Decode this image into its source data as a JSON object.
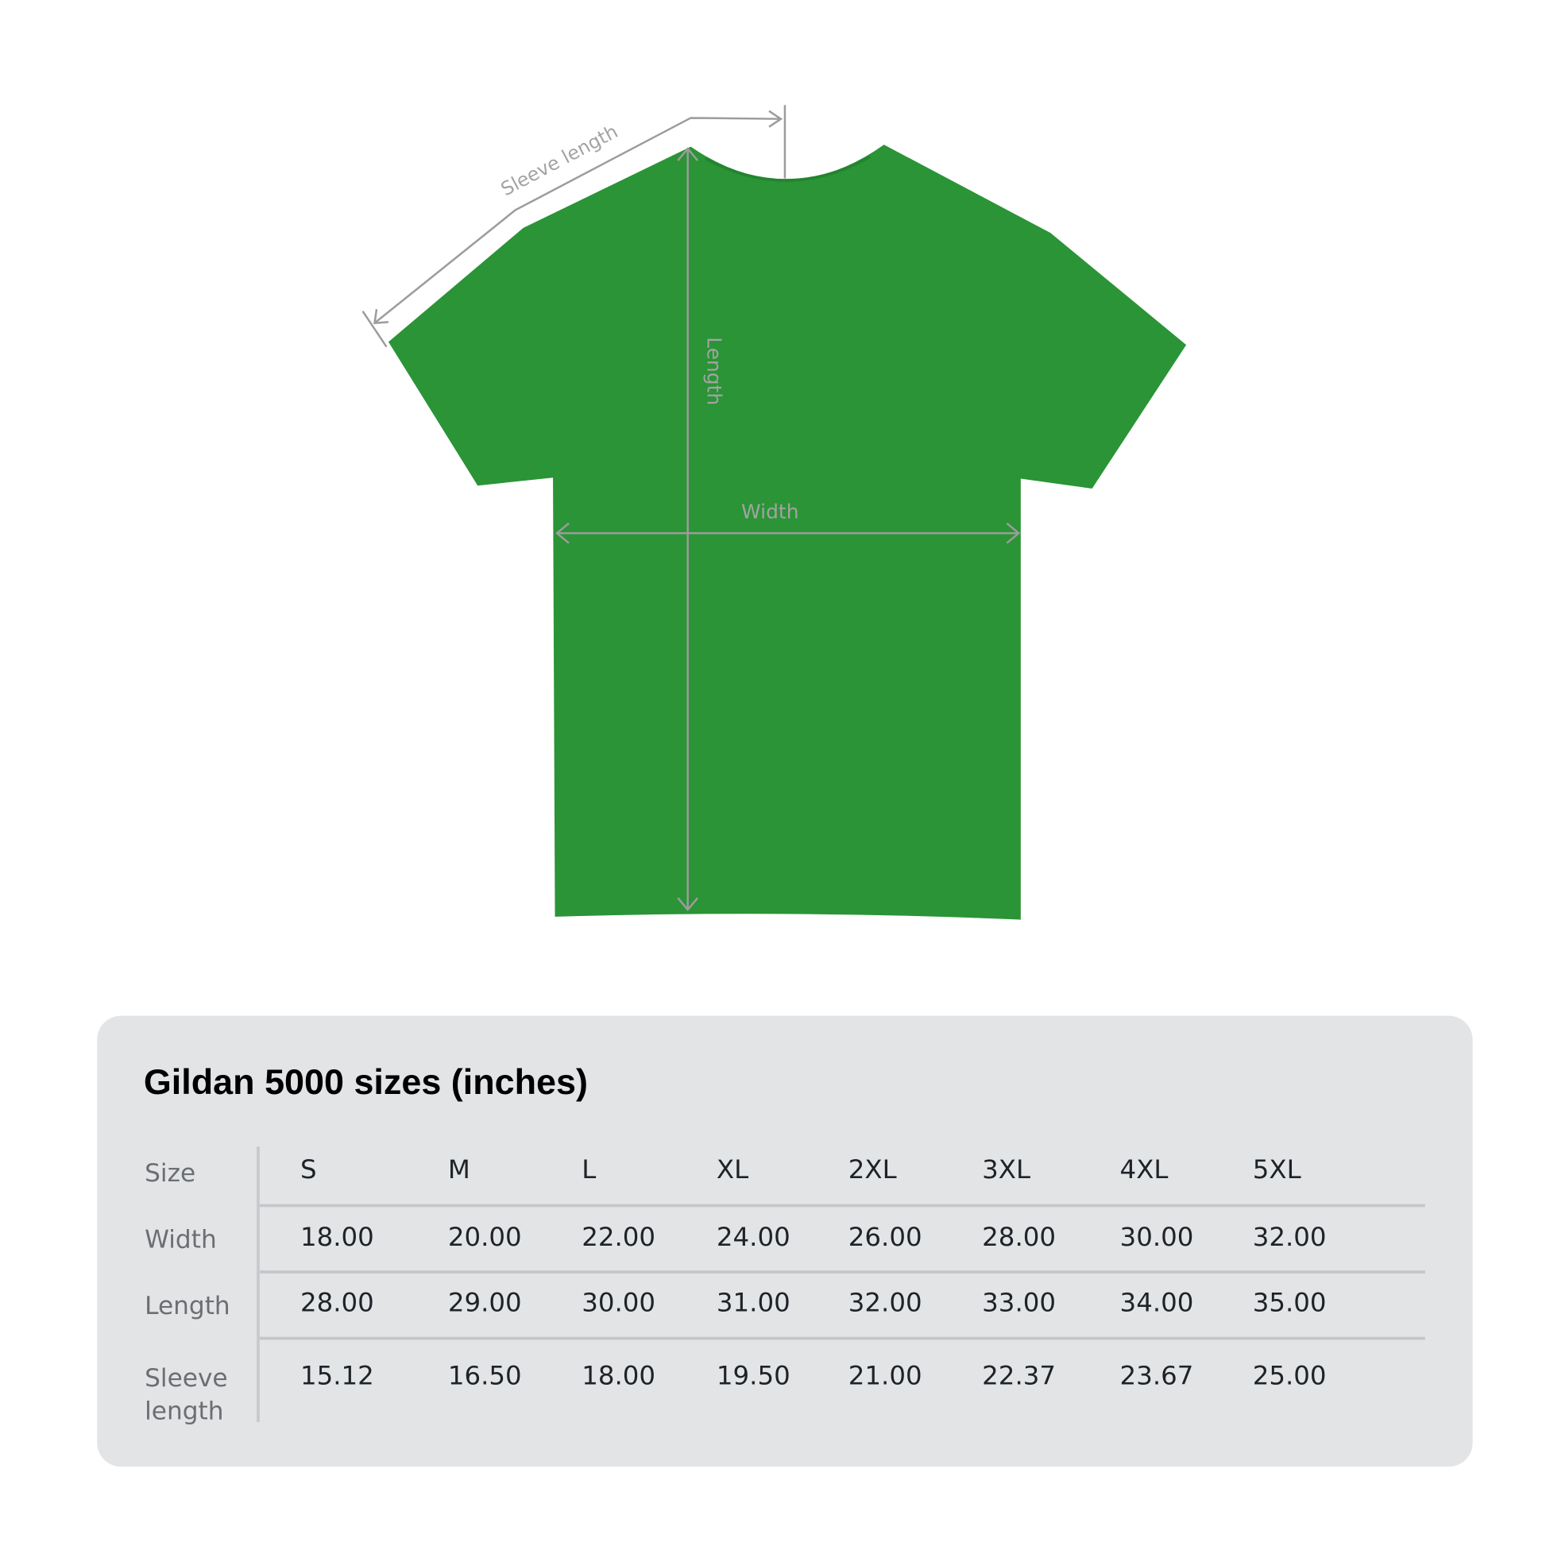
{
  "colors": {
    "shirt": "#2a9436",
    "panel": "#e3e4e6",
    "measure_line": "#9c9c9c"
  },
  "diagram": {
    "sleeve_label": "Sleeve length",
    "length_label": "Length",
    "width_label": "Width"
  },
  "table": {
    "title": "Gildan 5000 sizes (inches)",
    "header_label": "Size",
    "sizes": [
      "S",
      "M",
      "L",
      "XL",
      "2XL",
      "3XL",
      "4XL",
      "5XL"
    ],
    "rows": [
      {
        "label": "Width",
        "values": [
          "18.00",
          "20.00",
          "22.00",
          "24.00",
          "26.00",
          "28.00",
          "30.00",
          "32.00"
        ]
      },
      {
        "label": "Length",
        "values": [
          "28.00",
          "29.00",
          "30.00",
          "31.00",
          "32.00",
          "33.00",
          "34.00",
          "35.00"
        ]
      },
      {
        "label": "Sleeve length",
        "values": [
          "15.12",
          "16.50",
          "18.00",
          "19.50",
          "21.00",
          "22.37",
          "23.67",
          "25.00"
        ]
      }
    ]
  }
}
